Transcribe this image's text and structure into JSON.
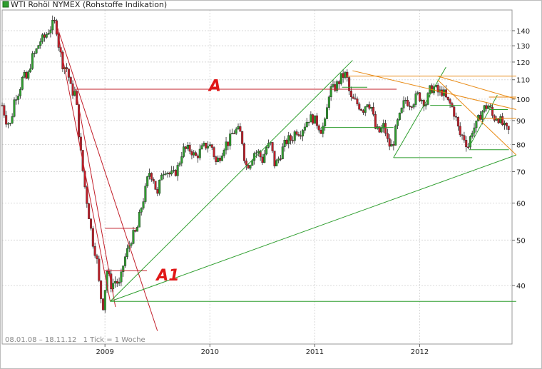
{
  "chart_data": {
    "type": "candlestick",
    "title": "WTI Rohöl NYMEX (Rohstoffe Indikation)",
    "date_range": "08.01.08 – 18.11.12",
    "interval": "1 Tick = 1 Woche",
    "y_scale": "log",
    "ylim": [
      30,
      155
    ],
    "y_ticks": [
      40,
      50,
      60,
      70,
      80,
      90,
      100,
      110,
      120,
      130,
      140
    ],
    "x_ticks": [
      "2009",
      "2010",
      "2011",
      "2012"
    ],
    "xlim": [
      2008.02,
      2012.88
    ],
    "grid": true,
    "legend_swatch_color": "#2e9e2e",
    "price_path": [
      [
        2008.02,
        97
      ],
      [
        2008.06,
        90
      ],
      [
        2008.1,
        88
      ],
      [
        2008.14,
        101
      ],
      [
        2008.18,
        104
      ],
      [
        2008.22,
        112
      ],
      [
        2008.26,
        110
      ],
      [
        2008.3,
        122
      ],
      [
        2008.34,
        126
      ],
      [
        2008.38,
        133
      ],
      [
        2008.42,
        135
      ],
      [
        2008.46,
        140
      ],
      [
        2008.5,
        144
      ],
      [
        2008.53,
        146
      ],
      [
        2008.56,
        130
      ],
      [
        2008.6,
        118
      ],
      [
        2008.64,
        116
      ],
      [
        2008.68,
        104
      ],
      [
        2008.72,
        103
      ],
      [
        2008.76,
        80
      ],
      [
        2008.8,
        67
      ],
      [
        2008.84,
        58
      ],
      [
        2008.88,
        50
      ],
      [
        2008.92,
        46
      ],
      [
        2008.95,
        39
      ],
      [
        2008.98,
        36
      ],
      [
        2009.02,
        43
      ],
      [
        2009.06,
        40
      ],
      [
        2009.1,
        41
      ],
      [
        2009.14,
        40
      ],
      [
        2009.18,
        45
      ],
      [
        2009.22,
        48
      ],
      [
        2009.26,
        51
      ],
      [
        2009.3,
        52
      ],
      [
        2009.34,
        58
      ],
      [
        2009.38,
        63
      ],
      [
        2009.42,
        70
      ],
      [
        2009.46,
        68
      ],
      [
        2009.5,
        62
      ],
      [
        2009.54,
        70
      ],
      [
        2009.58,
        71
      ],
      [
        2009.62,
        69
      ],
      [
        2009.66,
        69
      ],
      [
        2009.7,
        72
      ],
      [
        2009.74,
        78
      ],
      [
        2009.78,
        78
      ],
      [
        2009.82,
        78
      ],
      [
        2009.86,
        75
      ],
      [
        2009.9,
        77
      ],
      [
        2009.94,
        79
      ],
      [
        2009.98,
        80
      ],
      [
        2010.02,
        79
      ],
      [
        2010.06,
        73
      ],
      [
        2010.1,
        76
      ],
      [
        2010.14,
        80
      ],
      [
        2010.18,
        81
      ],
      [
        2010.22,
        85
      ],
      [
        2010.26,
        86
      ],
      [
        2010.3,
        84
      ],
      [
        2010.34,
        72
      ],
      [
        2010.38,
        73
      ],
      [
        2010.42,
        77
      ],
      [
        2010.46,
        77
      ],
      [
        2010.5,
        74
      ],
      [
        2010.54,
        79
      ],
      [
        2010.58,
        80
      ],
      [
        2010.62,
        72
      ],
      [
        2010.66,
        75
      ],
      [
        2010.7,
        79
      ],
      [
        2010.74,
        82
      ],
      [
        2010.78,
        82
      ],
      [
        2010.82,
        86
      ],
      [
        2010.86,
        85
      ],
      [
        2010.9,
        88
      ],
      [
        2010.94,
        91
      ],
      [
        2010.98,
        91
      ],
      [
        2011.02,
        89
      ],
      [
        2011.06,
        86
      ],
      [
        2011.1,
        89
      ],
      [
        2011.14,
        105
      ],
      [
        2011.18,
        105
      ],
      [
        2011.22,
        108
      ],
      [
        2011.26,
        112
      ],
      [
        2011.3,
        113
      ],
      [
        2011.34,
        100
      ],
      [
        2011.38,
        99
      ],
      [
        2011.42,
        97
      ],
      [
        2011.46,
        95
      ],
      [
        2011.5,
        99
      ],
      [
        2011.54,
        96
      ],
      [
        2011.58,
        86
      ],
      [
        2011.62,
        85
      ],
      [
        2011.66,
        88
      ],
      [
        2011.7,
        80
      ],
      [
        2011.74,
        79
      ],
      [
        2011.78,
        88
      ],
      [
        2011.82,
        93
      ],
      [
        2011.86,
        100
      ],
      [
        2011.9,
        98
      ],
      [
        2011.94,
        99
      ],
      [
        2011.98,
        102
      ],
      [
        2012.02,
        100
      ],
      [
        2012.06,
        98
      ],
      [
        2012.1,
        105
      ],
      [
        2012.14,
        106
      ],
      [
        2012.18,
        103
      ],
      [
        2012.22,
        104
      ],
      [
        2012.26,
        99
      ],
      [
        2012.3,
        97
      ],
      [
        2012.34,
        92
      ],
      [
        2012.38,
        84
      ],
      [
        2012.42,
        83
      ],
      [
        2012.46,
        79
      ],
      [
        2012.5,
        86
      ],
      [
        2012.54,
        88
      ],
      [
        2012.58,
        93
      ],
      [
        2012.62,
        96
      ],
      [
        2012.66,
        97
      ],
      [
        2012.7,
        91
      ],
      [
        2012.74,
        92
      ],
      [
        2012.78,
        89
      ],
      [
        2012.82,
        86
      ],
      [
        2012.86,
        85
      ]
    ],
    "trend_lines": [
      {
        "color": "#c21f2a",
        "points": [
          [
            2008.53,
            146
          ],
          [
            2009.05,
            37
          ]
        ]
      },
      {
        "color": "#c21f2a",
        "points": [
          [
            2008.53,
            146
          ],
          [
            2009.5,
            32
          ]
        ]
      },
      {
        "color": "#c21f2a",
        "points": [
          [
            2008.72,
            105
          ],
          [
            2009.1,
            36
          ]
        ]
      },
      {
        "color": "#c21f2a",
        "points": [
          [
            2008.72,
            105
          ],
          [
            2011.78,
            105
          ]
        ]
      },
      {
        "color": "#c21f2a",
        "points": [
          [
            2009.0,
            53
          ],
          [
            2009.3,
            53
          ]
        ]
      },
      {
        "color": "#c21f2a",
        "points": [
          [
            2009.0,
            43
          ],
          [
            2009.4,
            43
          ]
        ]
      },
      {
        "color": "#2e9e2e",
        "points": [
          [
            2009.05,
            37
          ],
          [
            2011.36,
            121
          ]
        ]
      },
      {
        "color": "#2e9e2e",
        "points": [
          [
            2009.05,
            37
          ],
          [
            2012.92,
            76
          ]
        ]
      },
      {
        "color": "#2e9e2e",
        "points": [
          [
            2009.05,
            37
          ],
          [
            2012.92,
            37
          ]
        ]
      },
      {
        "color": "#2e9e2e",
        "points": [
          [
            2011.06,
            87
          ],
          [
            2011.75,
            87
          ]
        ]
      },
      {
        "color": "#2e9e2e",
        "points": [
          [
            2011.26,
            106
          ],
          [
            2011.5,
            106
          ]
        ]
      },
      {
        "color": "#2e9e2e",
        "points": [
          [
            2011.75,
            75
          ],
          [
            2012.25,
            117
          ]
        ]
      },
      {
        "color": "#2e9e2e",
        "points": [
          [
            2011.75,
            75
          ],
          [
            2012.5,
            75
          ]
        ]
      },
      {
        "color": "#2e9e2e",
        "points": [
          [
            2012.1,
            97
          ],
          [
            2012.4,
            97
          ]
        ]
      },
      {
        "color": "#2e9e2e",
        "points": [
          [
            2012.47,
            79
          ],
          [
            2012.74,
            102
          ]
        ]
      },
      {
        "color": "#2e9e2e",
        "points": [
          [
            2012.47,
            78
          ],
          [
            2012.85,
            78
          ]
        ]
      },
      {
        "color": "#2e9e2e",
        "points": [
          [
            2012.66,
            95
          ],
          [
            2012.84,
            95
          ]
        ]
      },
      {
        "color": "#e88a14",
        "points": [
          [
            2011.36,
            115
          ],
          [
            2012.92,
            95
          ]
        ]
      },
      {
        "color": "#e88a14",
        "points": [
          [
            2011.3,
            112
          ],
          [
            2012.92,
            112
          ]
        ]
      },
      {
        "color": "#e88a14",
        "points": [
          [
            2012.17,
            112
          ],
          [
            2012.92,
            100
          ]
        ]
      },
      {
        "color": "#e88a14",
        "points": [
          [
            2012.66,
            101
          ],
          [
            2012.92,
            101
          ]
        ]
      },
      {
        "color": "#e88a14",
        "points": [
          [
            2012.17,
            110
          ],
          [
            2012.92,
            76
          ]
        ]
      },
      {
        "color": "#e88a14",
        "points": [
          [
            2012.6,
            91
          ],
          [
            2012.92,
            91
          ]
        ]
      }
    ],
    "annotations": [
      {
        "text": "A",
        "x": 2009.99,
        "y": 104
      },
      {
        "text": "A1",
        "x": 2009.49,
        "y": 41
      }
    ],
    "colors": {
      "up": "#2e9e2e",
      "down": "#c21f2a",
      "wick": "#222222",
      "grid": "#d8d8d8",
      "border": "#9a9a9a"
    }
  }
}
